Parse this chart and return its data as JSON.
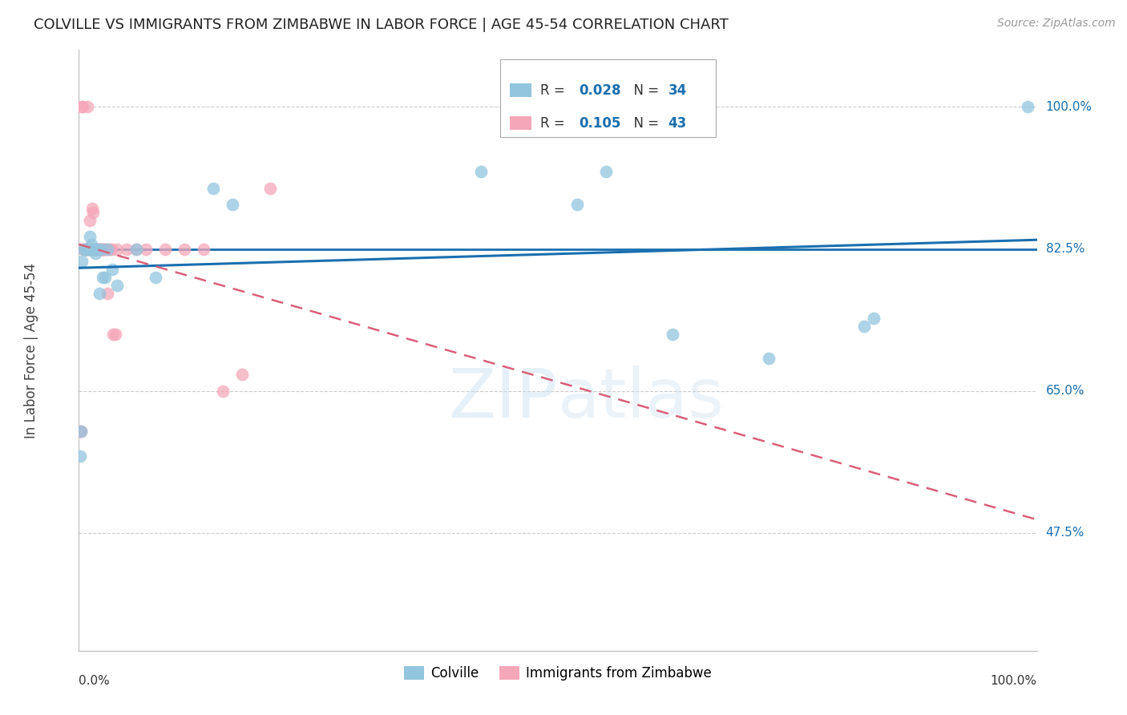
{
  "title": "COLVILLE VS IMMIGRANTS FROM ZIMBABWE IN LABOR FORCE | AGE 45-54 CORRELATION CHART",
  "source": "Source: ZipAtlas.com",
  "ylabel": "In Labor Force | Age 45-54",
  "xmin": 0.0,
  "xmax": 1.0,
  "ymin": 0.33,
  "ymax": 1.07,
  "yticks": [
    0.475,
    0.65,
    0.825,
    1.0
  ],
  "ytick_labels": [
    "47.5%",
    "65.0%",
    "82.5%",
    "100.0%"
  ],
  "hline_y": 0.825,
  "colville_R": 0.028,
  "colville_N": 34,
  "zimbabwe_R": 0.105,
  "zimbabwe_N": 43,
  "colville_color": "#92c5de",
  "zimbabwe_color": "#f4a7b9",
  "colville_line_color": "#1a6faf",
  "zimbabwe_line_color": "#d9607a",
  "background_color": "#ffffff",
  "colville_x": [
    0.001,
    0.002,
    0.003,
    0.005,
    0.007,
    0.009,
    0.01,
    0.011,
    0.012,
    0.013,
    0.014,
    0.015,
    0.016,
    0.017,
    0.019,
    0.021,
    0.023,
    0.025,
    0.027,
    0.03,
    0.035,
    0.04,
    0.06,
    0.08,
    0.14,
    0.16,
    0.42,
    0.52,
    0.55,
    0.62,
    0.72,
    0.82,
    0.83,
    0.99
  ],
  "colville_y": [
    0.57,
    0.6,
    0.81,
    0.825,
    0.825,
    0.825,
    0.825,
    0.84,
    0.825,
    0.83,
    0.825,
    0.825,
    0.825,
    0.82,
    0.825,
    0.77,
    0.825,
    0.79,
    0.79,
    0.825,
    0.8,
    0.78,
    0.825,
    0.79,
    0.9,
    0.88,
    0.92,
    0.88,
    0.92,
    0.72,
    0.69,
    0.73,
    0.74,
    1.0
  ],
  "zimbabwe_x": [
    0.001,
    0.002,
    0.003,
    0.004,
    0.005,
    0.006,
    0.007,
    0.008,
    0.009,
    0.01,
    0.011,
    0.012,
    0.013,
    0.014,
    0.015,
    0.016,
    0.017,
    0.018,
    0.019,
    0.02,
    0.021,
    0.022,
    0.023,
    0.024,
    0.025,
    0.026,
    0.027,
    0.028,
    0.03,
    0.032,
    0.034,
    0.036,
    0.038,
    0.04,
    0.05,
    0.06,
    0.07,
    0.09,
    0.11,
    0.13,
    0.15,
    0.17,
    0.2
  ],
  "zimbabwe_y": [
    0.6,
    0.6,
    1.0,
    1.0,
    0.825,
    0.825,
    0.825,
    0.825,
    1.0,
    0.825,
    0.86,
    0.825,
    0.825,
    0.875,
    0.87,
    0.825,
    0.825,
    0.825,
    0.825,
    0.825,
    0.825,
    0.825,
    0.825,
    0.825,
    0.825,
    0.825,
    0.825,
    0.825,
    0.77,
    0.825,
    0.825,
    0.72,
    0.72,
    0.825,
    0.825,
    0.825,
    0.825,
    0.825,
    0.825,
    0.825,
    0.65,
    0.67,
    0.9
  ]
}
